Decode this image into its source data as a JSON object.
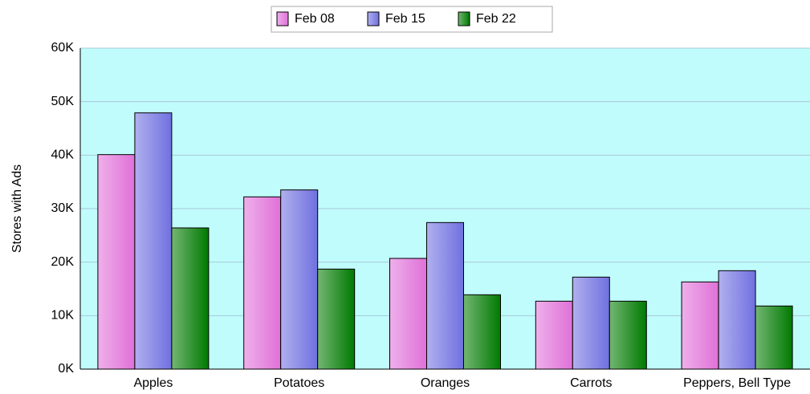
{
  "chart_data": {
    "type": "bar",
    "y_label": "Stores with Ads",
    "categories": [
      "Apples",
      "Potatoes",
      "Oranges",
      "Carrots",
      "Peppers, Bell Type"
    ],
    "series": [
      {
        "name": "Feb 08",
        "color": "#e070d8",
        "values": [
          40100,
          32200,
          20700,
          12700,
          16300
        ]
      },
      {
        "name": "Feb 15",
        "color": "#7070e0",
        "values": [
          47900,
          33500,
          27400,
          17200,
          18400
        ]
      },
      {
        "name": "Feb 22",
        "color": "#007a00",
        "values": [
          26400,
          18700,
          13900,
          12700,
          11800
        ]
      }
    ],
    "ylim": [
      0,
      60000
    ],
    "yticks": [
      {
        "value": 0,
        "label": "0K"
      },
      {
        "value": 10000,
        "label": "10K"
      },
      {
        "value": 20000,
        "label": "20K"
      },
      {
        "value": 30000,
        "label": "30K"
      },
      {
        "value": 40000,
        "label": "40K"
      },
      {
        "value": 50000,
        "label": "50K"
      },
      {
        "value": 60000,
        "label": "60K"
      }
    ],
    "grid": true,
    "legend": "top",
    "background": "#c0fcfc"
  }
}
